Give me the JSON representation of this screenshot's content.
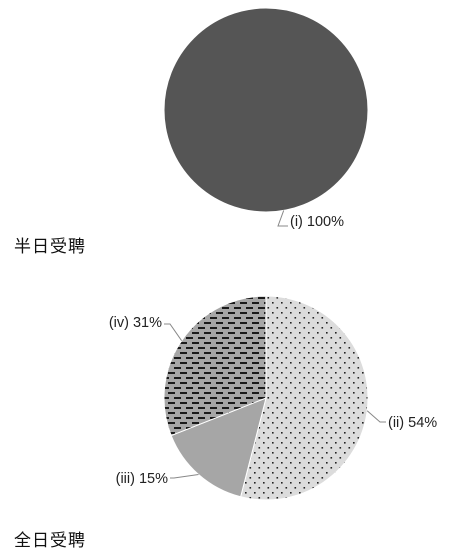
{
  "chart_data": [
    {
      "type": "pie",
      "title": "",
      "caption": "半日受聘",
      "slices": [
        {
          "label": "(i)",
          "value": 100,
          "display": "(i) 100%",
          "color": "#555555",
          "pattern": "solid"
        }
      ]
    },
    {
      "type": "pie",
      "title": "",
      "caption": "全日受聘",
      "slices": [
        {
          "label": "(ii)",
          "value": 54,
          "display": "(ii) 54%",
          "color": "#dcdcdc",
          "pattern": "dots"
        },
        {
          "label": "(iii)",
          "value": 15,
          "display": "(iii) 15%",
          "color": "#a6a6a6",
          "pattern": "solid"
        },
        {
          "label": "(iv)",
          "value": 31,
          "display": "(iv) 31%",
          "color": "#a6a6a6",
          "pattern": "dashes"
        }
      ]
    }
  ]
}
